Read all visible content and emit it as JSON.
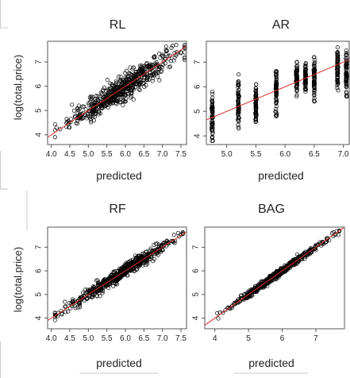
{
  "chart_data": [
    {
      "type": "scatter",
      "title": "RL",
      "xlabel": "predicted",
      "ylabel": "log(total.price)",
      "xlim": [
        3.9,
        7.65
      ],
      "ylim": [
        3.6,
        7.85
      ],
      "xticks": [
        4.0,
        4.5,
        5.0,
        5.5,
        6.0,
        6.5,
        7.0,
        7.5
      ],
      "xtick_labels": [
        "4.0",
        "4.5",
        "5.0",
        "5.5",
        "6.0",
        "6.5",
        "7.0",
        "7.5"
      ],
      "yticks": [
        4,
        5,
        6,
        7
      ],
      "ytick_labels": [
        "4",
        "5",
        "6",
        "7"
      ],
      "reference_line": {
        "intercept": 0,
        "slope": 1,
        "color": "#e03030"
      },
      "point_cloud": {
        "x_range": [
          4.1,
          7.6
        ],
        "y_range": [
          3.9,
          7.7
        ],
        "n_points": 600,
        "trend": "y ≈ x",
        "spread_sd": 0.25
      }
    },
    {
      "type": "scatter",
      "title": "AR",
      "xlabel": "predicted",
      "ylabel": "",
      "xlim": [
        4.65,
        7.1
      ],
      "ylim": [
        3.65,
        7.85
      ],
      "xticks": [
        5.0,
        5.5,
        6.0,
        6.5,
        7.0
      ],
      "xtick_labels": [
        "5.0",
        "5.5",
        "6.0",
        "6.5",
        "7.0"
      ],
      "yticks": [
        4,
        5,
        6,
        7
      ],
      "ytick_labels": [
        "4",
        "5",
        "6",
        "7"
      ],
      "reference_line": {
        "intercept": 0,
        "slope": 1,
        "color": "#e03030"
      },
      "point_columns": [
        {
          "x": 4.75,
          "y_range": [
            3.8,
            5.8
          ]
        },
        {
          "x": 5.2,
          "y_range": [
            4.3,
            6.5
          ]
        },
        {
          "x": 5.5,
          "y_range": [
            4.4,
            6.1
          ]
        },
        {
          "x": 5.85,
          "y_range": [
            4.8,
            6.9
          ]
        },
        {
          "x": 6.2,
          "y_range": [
            5.6,
            7.0
          ]
        },
        {
          "x": 6.35,
          "y_range": [
            5.8,
            7.0
          ]
        },
        {
          "x": 6.5,
          "y_range": [
            5.4,
            7.2
          ]
        },
        {
          "x": 6.9,
          "y_range": [
            5.8,
            7.6
          ]
        },
        {
          "x": 7.05,
          "y_range": [
            5.6,
            7.6
          ]
        }
      ]
    },
    {
      "type": "scatter",
      "title": "RF",
      "xlabel": "predicted",
      "ylabel": "log(total.price)",
      "xlim": [
        3.9,
        7.65
      ],
      "ylim": [
        3.55,
        7.85
      ],
      "xticks": [
        4.0,
        4.5,
        5.0,
        5.5,
        6.0,
        6.5,
        7.0,
        7.5
      ],
      "xtick_labels": [
        "4.0",
        "4.5",
        "5.0",
        "5.5",
        "6.0",
        "6.5",
        "7.0",
        "7.5"
      ],
      "yticks": [
        4,
        5,
        6,
        7
      ],
      "ytick_labels": [
        "4",
        "5",
        "6",
        "7"
      ],
      "reference_line": {
        "intercept": 0,
        "slope": 1,
        "color": "#e03030"
      },
      "point_cloud": {
        "x_range": [
          4.1,
          7.55
        ],
        "y_range": [
          3.8,
          7.7
        ],
        "n_points": 600,
        "trend": "y ≈ x",
        "spread_sd": 0.14
      }
    },
    {
      "type": "scatter",
      "title": "BAG",
      "xlabel": "predicted",
      "ylabel": "",
      "xlim": [
        3.7,
        7.85
      ],
      "ylim": [
        3.55,
        7.85
      ],
      "xticks": [
        4,
        5,
        6,
        7
      ],
      "xtick_labels": [
        "4",
        "5",
        "6",
        "7"
      ],
      "yticks": [
        4,
        5,
        6,
        7
      ],
      "ytick_labels": [
        "4",
        "5",
        "6",
        "7"
      ],
      "reference_line": {
        "intercept": 0,
        "slope": 1,
        "color": "#e03030"
      },
      "point_cloud": {
        "x_range": [
          3.9,
          7.7
        ],
        "y_range": [
          3.8,
          7.7
        ],
        "n_points": 600,
        "trend": "y ≈ x",
        "spread_sd": 0.07
      }
    }
  ]
}
